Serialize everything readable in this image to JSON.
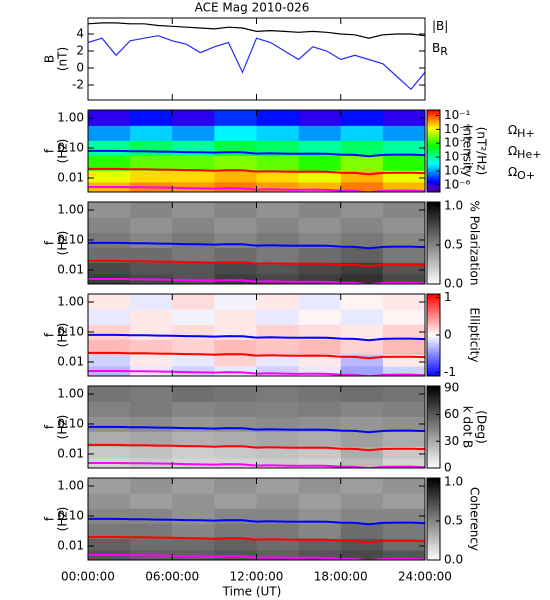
{
  "chart_data": [
    {
      "type": "line",
      "title": "ACE Mag 2010-026",
      "ylabel": [
        "B",
        "(nT)"
      ],
      "x": [
        0,
        1,
        2,
        3,
        4,
        5,
        6,
        7,
        8,
        9,
        10,
        11,
        12,
        13,
        14,
        15,
        16,
        17,
        18,
        19,
        20,
        21,
        22,
        23,
        24
      ],
      "xlim": [
        0,
        24
      ],
      "ylim": [
        -3.76,
        5.88
      ],
      "yticks": [
        -2,
        0,
        2,
        4
      ],
      "series": [
        {
          "name": "|B|",
          "color": "#000000",
          "values": [
            5.2,
            5.3,
            5.3,
            5.2,
            5.2,
            5.0,
            4.9,
            4.8,
            4.7,
            4.6,
            4.8,
            4.7,
            4.3,
            4.4,
            4.3,
            4.2,
            4.3,
            4.2,
            4.0,
            3.9,
            3.5,
            3.9,
            4.0,
            4.0,
            3.8
          ]
        },
        {
          "name": "B",
          "name_sub": "R",
          "color": "#2828ff",
          "values": [
            3.0,
            3.5,
            1.5,
            3.2,
            3.5,
            3.8,
            3.2,
            2.8,
            1.8,
            2.5,
            3.0,
            -0.5,
            3.5,
            3.0,
            2.0,
            1.0,
            2.5,
            2.0,
            1.0,
            1.5,
            1.0,
            0.5,
            -1.0,
            -2.5,
            -0.5
          ]
        }
      ]
    },
    {
      "type": "spectrogram",
      "ylabel": [
        "f",
        "(Hz)"
      ],
      "ylog": true,
      "xlim": [
        0,
        24
      ],
      "ylim": [
        0.0034,
        1.85
      ],
      "yticks": [
        {
          "value": 1,
          "label": "1.00"
        },
        {
          "value": 0.1,
          "label": "0.10"
        },
        {
          "value": 0.01,
          "label": "0.01"
        }
      ],
      "t": [
        1.5,
        4.5,
        7.5,
        10.5,
        13.5,
        16.5,
        19.5,
        22.5
      ],
      "f": [
        1.0,
        0.3,
        0.1,
        0.03,
        0.01,
        0.005
      ],
      "z": [
        [
          1e-06,
          2e-06,
          1e-06,
          3e-06,
          2e-06,
          1e-06,
          2e-06,
          1e-06
        ],
        [
          1e-05,
          2e-05,
          1e-05,
          3e-05,
          2e-05,
          1e-05,
          2e-05,
          1e-05
        ],
        [
          0.0001,
          0.0002,
          0.0001,
          0.0003,
          0.0002,
          0.0001,
          0.0002,
          0.0001
        ],
        [
          0.001,
          0.002,
          0.002,
          0.003,
          0.002,
          0.001,
          0.003,
          0.001
        ],
        [
          0.01,
          0.02,
          0.02,
          0.03,
          0.02,
          0.01,
          0.03,
          0.01
        ],
        [
          0.03,
          0.05,
          0.04,
          0.06,
          0.04,
          0.03,
          0.06,
          0.03
        ]
      ],
      "colormap": "rainbow",
      "zlog": true,
      "zlim": [
        3e-07,
        0.25
      ],
      "zticks": [
        {
          "value": 0.1,
          "label": "10⁻¹"
        },
        {
          "value": 0.01,
          "label": "10⁻²"
        },
        {
          "value": 0.001,
          "label": "10⁻³"
        },
        {
          "value": 0.0001,
          "label": "10⁻⁴"
        },
        {
          "value": 1e-05,
          "label": "10⁻⁵"
        },
        {
          "value": 1e-06,
          "label": "10⁻⁶"
        }
      ],
      "zlabel": [
        "Intensity",
        "(nT²/Hz)"
      ],
      "x": [
        0,
        1,
        2,
        3,
        4,
        5,
        6,
        7,
        8,
        9,
        10,
        11,
        12,
        13,
        14,
        15,
        16,
        17,
        18,
        19,
        20,
        21,
        22,
        23,
        24
      ],
      "series": [
        {
          "name": "Ω",
          "name_sub": "H+",
          "color": "#0000ff",
          "values": [
            0.08,
            0.08,
            0.08,
            0.078,
            0.078,
            0.076,
            0.075,
            0.073,
            0.072,
            0.07,
            0.073,
            0.072,
            0.065,
            0.067,
            0.065,
            0.064,
            0.065,
            0.064,
            0.06,
            0.059,
            0.053,
            0.059,
            0.06,
            0.06,
            0.058
          ]
        },
        {
          "name": "Ω",
          "name_sub": "He+",
          "color": "#ff0000",
          "values": [
            0.02,
            0.02,
            0.02,
            0.0195,
            0.0195,
            0.019,
            0.0188,
            0.0183,
            0.018,
            0.0175,
            0.0183,
            0.018,
            0.0163,
            0.0168,
            0.0163,
            0.016,
            0.0163,
            0.016,
            0.015,
            0.0148,
            0.0133,
            0.0148,
            0.015,
            0.015,
            0.0145
          ]
        },
        {
          "name": "Ω",
          "name_sub": "O+",
          "color": "#ff00ff",
          "values": [
            0.005,
            0.005,
            0.005,
            0.0049,
            0.0049,
            0.0048,
            0.0047,
            0.0046,
            0.0045,
            0.0044,
            0.0046,
            0.0045,
            0.0041,
            0.0042,
            0.0041,
            0.004,
            0.0041,
            0.004,
            0.0038,
            0.0037,
            0.0033,
            0.0037,
            0.0038,
            0.0038,
            0.0036
          ]
        }
      ]
    },
    {
      "type": "spectrogram",
      "ylabel": [
        "f",
        "(Hz)"
      ],
      "ylog": true,
      "xlim": [
        0,
        24
      ],
      "ylim": [
        0.0034,
        1.85
      ],
      "yticks": [
        {
          "value": 1,
          "label": "1.00"
        },
        {
          "value": 0.1,
          "label": "0.10"
        },
        {
          "value": 0.01,
          "label": "0.01"
        }
      ],
      "t": [
        1.5,
        4.5,
        7.5,
        10.5,
        13.5,
        16.5,
        19.5,
        22.5
      ],
      "f": [
        1.0,
        0.3,
        0.1,
        0.03,
        0.01,
        0.005
      ],
      "z": [
        [
          0.45,
          0.5,
          0.45,
          0.5,
          0.45,
          0.5,
          0.45,
          0.5
        ],
        [
          0.5,
          0.45,
          0.5,
          0.45,
          0.5,
          0.45,
          0.5,
          0.45
        ],
        [
          0.55,
          0.5,
          0.55,
          0.5,
          0.55,
          0.5,
          0.55,
          0.5
        ],
        [
          0.6,
          0.6,
          0.55,
          0.6,
          0.55,
          0.6,
          0.65,
          0.55
        ],
        [
          0.75,
          0.7,
          0.7,
          0.75,
          0.7,
          0.75,
          0.8,
          0.7
        ],
        [
          0.8,
          0.75,
          0.7,
          0.8,
          0.75,
          0.8,
          0.85,
          0.75
        ]
      ],
      "colormap": "gray",
      "zlim": [
        0,
        1.05
      ],
      "zticks": [
        {
          "value": 0,
          "label": "0.0"
        },
        {
          "value": 0.5,
          "label": "0.5"
        },
        {
          "value": 1,
          "label": "1.0"
        }
      ],
      "zlabel": [
        "% Polarization"
      ]
    },
    {
      "type": "spectrogram",
      "ylabel": [
        "f",
        "(Hz)"
      ],
      "ylog": true,
      "xlim": [
        0,
        24
      ],
      "ylim": [
        0.0034,
        1.85
      ],
      "yticks": [
        {
          "value": 1,
          "label": "1.00"
        },
        {
          "value": 0.1,
          "label": "0.10"
        },
        {
          "value": 0.01,
          "label": "0.01"
        }
      ],
      "t": [
        1.5,
        4.5,
        7.5,
        10.5,
        13.5,
        16.5,
        19.5,
        22.5
      ],
      "f": [
        1.0,
        0.3,
        0.1,
        0.03,
        0.01,
        0.005
      ],
      "z": [
        [
          0.1,
          -0.1,
          0.15,
          -0.05,
          0.1,
          -0.1,
          0.05,
          0.1
        ],
        [
          -0.1,
          0.1,
          -0.05,
          0.1,
          -0.1,
          0.05,
          -0.1,
          0.05
        ],
        [
          0.2,
          0.1,
          0.15,
          0.1,
          0.2,
          0.15,
          0.1,
          0.2
        ],
        [
          0.3,
          0.25,
          0.2,
          0.3,
          0.25,
          0.3,
          0.2,
          0.3
        ],
        [
          -0.2,
          0.1,
          -0.1,
          0.2,
          -0.1,
          0.1,
          -0.3,
          0.1
        ],
        [
          -0.3,
          -0.1,
          -0.2,
          -0.1,
          -0.2,
          -0.1,
          -0.4,
          -0.2
        ]
      ],
      "colormap": "bwr",
      "zlim": [
        -1.1,
        1.1
      ],
      "zticks": [
        -1,
        0,
        1
      ],
      "zlabel": [
        "Ellipticity"
      ]
    },
    {
      "type": "spectrogram",
      "ylabel": [
        "f",
        "(Hz)"
      ],
      "ylog": true,
      "xlim": [
        0,
        24
      ],
      "ylim": [
        0.0034,
        1.85
      ],
      "yticks": [
        {
          "value": 1,
          "label": "1.00"
        },
        {
          "value": 0.1,
          "label": "0.10"
        },
        {
          "value": 0.01,
          "label": "0.01"
        }
      ],
      "t": [
        1.5,
        4.5,
        7.5,
        10.5,
        13.5,
        16.5,
        19.5,
        22.5
      ],
      "f": [
        1.0,
        0.3,
        0.1,
        0.03,
        0.01,
        0.005
      ],
      "z": [
        [
          50,
          48,
          52,
          50,
          48,
          50,
          52,
          50
        ],
        [
          45,
          48,
          44,
          46,
          45,
          47,
          44,
          46
        ],
        [
          40,
          42,
          38,
          40,
          42,
          40,
          38,
          40
        ],
        [
          30,
          32,
          28,
          30,
          32,
          30,
          35,
          30
        ],
        [
          20,
          22,
          18,
          20,
          22,
          20,
          30,
          20
        ],
        [
          15,
          18,
          15,
          16,
          18,
          15,
          25,
          15
        ]
      ],
      "colormap": "gray",
      "zlim": [
        0,
        92
      ],
      "zticks": [
        0,
        30,
        60,
        90
      ],
      "zlabel": [
        "k dot B",
        "(Deg)"
      ]
    },
    {
      "type": "spectrogram",
      "ylabel": [
        "f",
        "(Hz)"
      ],
      "ylog": true,
      "xlim": [
        0,
        24
      ],
      "ylim": [
        0.0034,
        1.85
      ],
      "yticks": [
        {
          "value": 1,
          "label": "1.00"
        },
        {
          "value": 0.1,
          "label": "0.10"
        },
        {
          "value": 0.01,
          "label": "0.01"
        }
      ],
      "t": [
        1.5,
        4.5,
        7.5,
        10.5,
        13.5,
        16.5,
        19.5,
        22.5
      ],
      "f": [
        1.0,
        0.3,
        0.1,
        0.03,
        0.01,
        0.005
      ],
      "z": [
        [
          0.4,
          0.45,
          0.4,
          0.45,
          0.4,
          0.45,
          0.4,
          0.45
        ],
        [
          0.45,
          0.4,
          0.45,
          0.4,
          0.45,
          0.4,
          0.45,
          0.4
        ],
        [
          0.5,
          0.5,
          0.45,
          0.5,
          0.5,
          0.45,
          0.5,
          0.5
        ],
        [
          0.55,
          0.55,
          0.5,
          0.55,
          0.55,
          0.5,
          0.6,
          0.55
        ],
        [
          0.65,
          0.6,
          0.6,
          0.65,
          0.6,
          0.65,
          0.7,
          0.6
        ],
        [
          0.7,
          0.65,
          0.65,
          0.7,
          0.65,
          0.7,
          0.75,
          0.7
        ]
      ],
      "colormap": "gray",
      "zlim": [
        0,
        1.05
      ],
      "zticks": [
        {
          "value": 0,
          "label": "0.0"
        },
        {
          "value": 0.5,
          "label": "0.5"
        },
        {
          "value": 1,
          "label": "1.0"
        }
      ],
      "zlabel": [
        "Coherency"
      ],
      "xticks": [
        {
          "value": 0,
          "label": "00:00:00"
        },
        {
          "value": 6,
          "label": "06:00:00"
        },
        {
          "value": 12,
          "label": "12:00:00"
        },
        {
          "value": 18,
          "label": "18:00:00"
        },
        {
          "value": 24,
          "label": "24:00:00"
        }
      ],
      "xlabel": "Time (UT)"
    }
  ]
}
